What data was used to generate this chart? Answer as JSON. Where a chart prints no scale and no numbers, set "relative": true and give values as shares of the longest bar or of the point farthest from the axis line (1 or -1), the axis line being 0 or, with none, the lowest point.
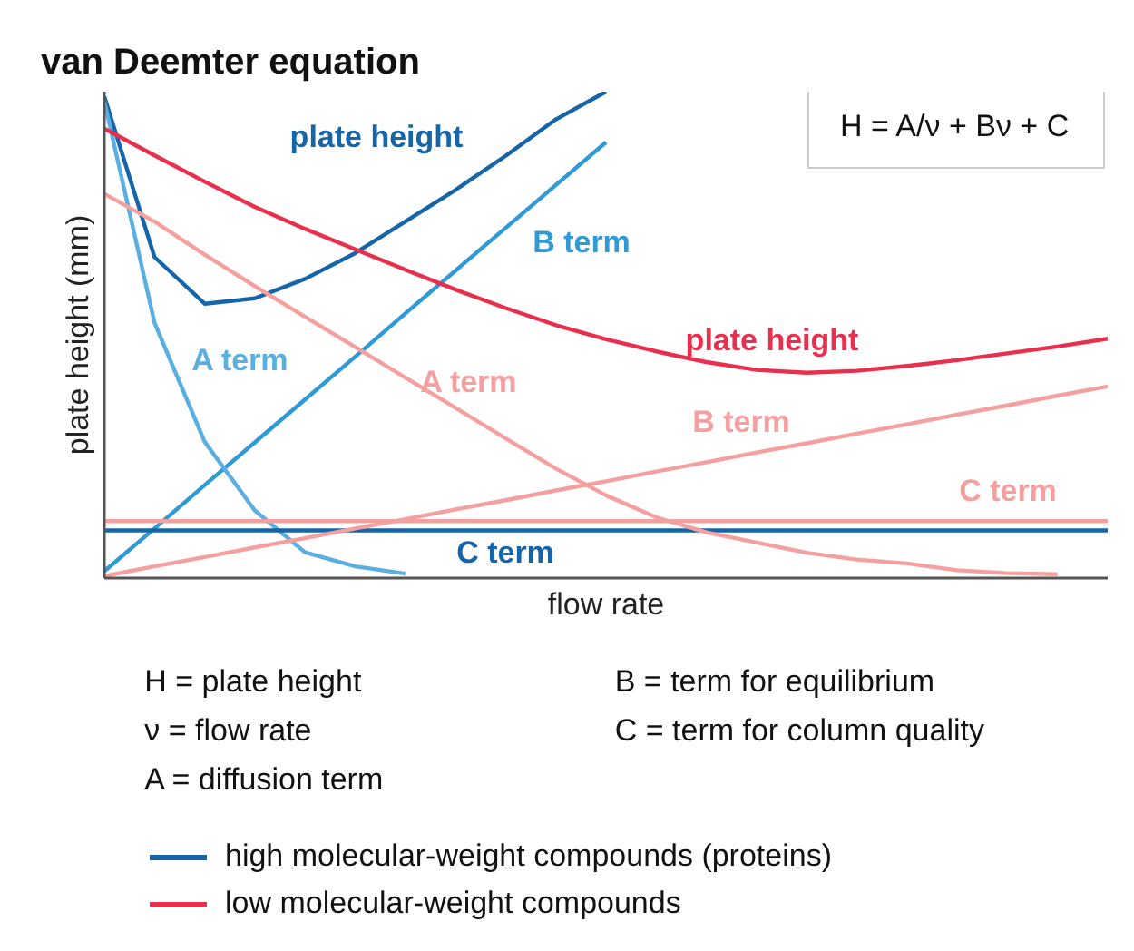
{
  "chart_data": {
    "type": "line",
    "title": "van Deemter equation",
    "xlabel": "flow rate",
    "ylabel": "plate height (mm)",
    "relative": true,
    "legend": "bottom",
    "marker": "none",
    "line_style": "solid",
    "categories": [
      null,
      null,
      null,
      null,
      null,
      null,
      null,
      null,
      null,
      null,
      null,
      null,
      null,
      null,
      null,
      null,
      null,
      null,
      null,
      null,
      null
    ],
    "series": [
      {
        "name": "plate height",
        "color": "#1565a8",
        "values": [
          0.99,
          0.66,
          0.564,
          0.575,
          0.615,
          0.668,
          0.733,
          0.798,
          0.868,
          0.943,
          1.0,
          null,
          null,
          null,
          null,
          null,
          null,
          null,
          null,
          null,
          null
        ]
      },
      {
        "name": "B term",
        "color": "#2f9ad6",
        "values": [
          0.014,
          0.102,
          0.191,
          0.279,
          0.367,
          0.455,
          0.544,
          0.632,
          0.72,
          0.808,
          0.896,
          null,
          null,
          null,
          null,
          null,
          null,
          null,
          null,
          null,
          null
        ]
      },
      {
        "name": "A term",
        "color": "#5aaee0",
        "values": [
          0.98,
          0.525,
          0.28,
          0.139,
          0.053,
          0.024,
          0.009,
          null,
          null,
          null,
          null,
          null,
          null,
          null,
          null,
          null,
          null,
          null,
          null,
          null,
          null
        ]
      },
      {
        "name": "C term",
        "color": "#1565a8",
        "values": [
          0.098,
          0.098,
          0.098,
          0.098,
          0.098,
          0.098,
          0.098,
          0.098,
          0.098,
          0.098,
          0.098,
          0.098,
          0.098,
          0.098,
          0.098,
          0.098,
          0.098,
          0.098,
          0.098,
          0.098,
          0.098
        ]
      },
      {
        "name": "plate height",
        "color": "#e8304e",
        "values": [
          0.924,
          0.869,
          0.815,
          0.763,
          0.718,
          0.676,
          0.634,
          0.593,
          0.555,
          0.52,
          0.491,
          0.466,
          0.444,
          0.428,
          0.422,
          0.426,
          0.436,
          0.448,
          0.462,
          0.476,
          0.492
        ]
      },
      {
        "name": "A term",
        "color": "#f4a0a0",
        "values": [
          0.79,
          0.733,
          0.665,
          0.6,
          0.537,
          0.475,
          0.412,
          0.35,
          0.287,
          0.225,
          0.17,
          0.125,
          0.094,
          0.073,
          0.052,
          0.038,
          0.03,
          0.016,
          0.01,
          0.008,
          null
        ]
      },
      {
        "name": "B term",
        "color": "#f4a0a0",
        "values": [
          0.004,
          0.024,
          0.043,
          0.063,
          0.082,
          0.102,
          0.121,
          0.141,
          0.16,
          0.18,
          0.199,
          0.219,
          0.238,
          0.258,
          0.277,
          0.297,
          0.316,
          0.336,
          0.355,
          0.375,
          0.394
        ]
      },
      {
        "name": "C term",
        "color": "#f4a0a0",
        "values": [
          0.117,
          0.117,
          0.117,
          0.117,
          0.117,
          0.117,
          0.117,
          0.117,
          0.117,
          0.117,
          0.117,
          0.117,
          0.117,
          0.117,
          0.117,
          0.117,
          0.117,
          0.117,
          0.117,
          0.117,
          0.117
        ]
      }
    ],
    "annotations": [
      "H = A/ν + Bν + C",
      "H = plate height",
      "ν = flow rate",
      "A = diffusion term",
      "B =  term for equilibrium",
      "C = term for column quality",
      "high molecular-weight compounds (proteins)",
      "low molecular-weight compounds"
    ]
  }
}
